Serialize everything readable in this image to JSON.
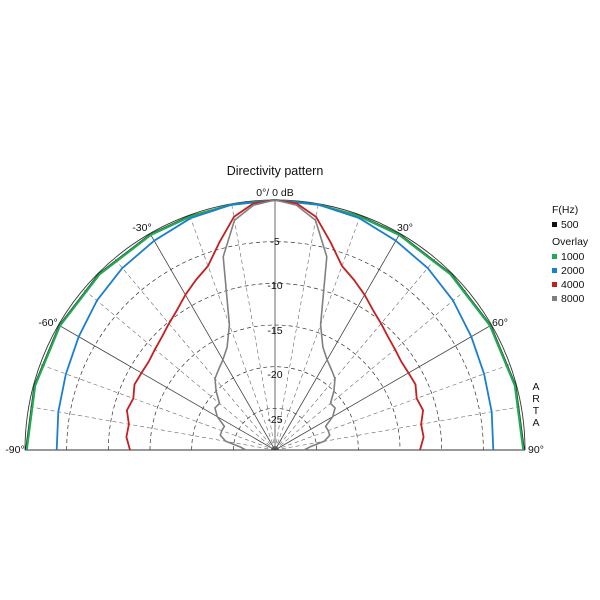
{
  "chart_data": {
    "type": "polar-line",
    "title": "Directivity pattern",
    "top_label": "0°/ 0 dB",
    "angle_range": [
      -90,
      90
    ],
    "radial_range_db": [
      -30,
      0
    ],
    "radial_ticks": [
      "-5",
      "-10",
      "-15",
      "-20",
      "-25"
    ],
    "angle_labels": {
      "neg90": "-90°",
      "neg60": "-60°",
      "neg30": "-30°",
      "pos30": "30°",
      "pos60": "60°",
      "pos90": "90°"
    },
    "grid": true,
    "legend": {
      "placement": "right",
      "header": "F(Hz)",
      "overlay_label": "Overlay",
      "items": [
        {
          "label": "500",
          "color": "#111111"
        },
        {
          "label": "1000",
          "color": "#22aa55"
        },
        {
          "label": "2000",
          "color": "#1a7fd0"
        },
        {
          "label": "4000",
          "color": "#c42020"
        },
        {
          "label": "8000",
          "color": "#808080"
        }
      ]
    },
    "watermark": "ARTA",
    "series": [
      {
        "name": "500",
        "color": "#111111",
        "angles": [
          -90,
          -75,
          -60,
          -45,
          -30,
          -20,
          -10,
          0,
          10,
          20,
          30,
          45,
          60,
          75,
          90
        ],
        "db": [
          -0.1,
          -0.1,
          -0.1,
          -0.1,
          -0.1,
          -0.1,
          -0.1,
          0,
          -0.1,
          -0.1,
          -0.1,
          -0.1,
          -0.1,
          -0.1,
          -0.1
        ]
      },
      {
        "name": "1000",
        "color": "#22aa55",
        "angles": [
          -90,
          -75,
          -60,
          -45,
          -30,
          -20,
          -10,
          0,
          10,
          20,
          30,
          45,
          60,
          75,
          90
        ],
        "db": [
          -0.2,
          -0.2,
          -0.2,
          -0.2,
          -0.2,
          -0.2,
          -0.1,
          0,
          -0.1,
          -0.2,
          -0.2,
          -0.2,
          -0.2,
          -0.2,
          -0.2
        ]
      },
      {
        "name": "2000",
        "color": "#1a7fd0",
        "angles": [
          -90,
          -80,
          -70,
          -60,
          -50,
          -40,
          -30,
          -20,
          -10,
          0,
          10,
          20,
          30,
          40,
          50,
          60,
          70,
          80,
          90
        ],
        "db": [
          -3.8,
          -3.6,
          -3.3,
          -2.8,
          -2.1,
          -1.5,
          -1.0,
          -0.4,
          -0.1,
          0,
          -0.1,
          -0.4,
          -1.0,
          -1.5,
          -2.1,
          -2.8,
          -3.3,
          -3.6,
          -3.8
        ]
      },
      {
        "name": "4000",
        "color": "#c42020",
        "angles": [
          -90,
          -85,
          -80,
          -75,
          -70,
          -65,
          -60,
          -55,
          -50,
          -45,
          -40,
          -35,
          -30,
          -25,
          -20,
          -15,
          -10,
          -5,
          0,
          5,
          10,
          15,
          20,
          25,
          30,
          35,
          40,
          45,
          50,
          55,
          60,
          65,
          70,
          75,
          80,
          85,
          90
        ],
        "db": [
          -12.6,
          -12.1,
          -12.2,
          -11.6,
          -11.9,
          -11.4,
          -11.5,
          -11.5,
          -11.2,
          -10.8,
          -10.2,
          -9.5,
          -8.5,
          -7.5,
          -6.5,
          -4.2,
          -1.6,
          -0.3,
          0,
          -0.3,
          -1.6,
          -4.2,
          -6.5,
          -7.5,
          -8.5,
          -9.5,
          -10.2,
          -10.8,
          -11.2,
          -11.5,
          -11.5,
          -11.4,
          -11.9,
          -11.6,
          -12.2,
          -12.1,
          -12.6
        ]
      },
      {
        "name": "8000",
        "color": "#808080",
        "angles": [
          -90,
          -85,
          -80,
          -75,
          -70,
          -65,
          -60,
          -55,
          -50,
          -45,
          -40,
          -35,
          -30,
          -25,
          -20,
          -15,
          -10,
          -5,
          0,
          5,
          10,
          15,
          20,
          25,
          30,
          35,
          40,
          45,
          50,
          55,
          60,
          65,
          70,
          75,
          80,
          85,
          90
        ],
        "db": [
          -26.5,
          -25.8,
          -24.0,
          -23.2,
          -23.2,
          -23.3,
          -22.0,
          -21.2,
          -21.3,
          -20.0,
          -18.8,
          -18.2,
          -17.5,
          -16.4,
          -14.0,
          -6.0,
          -2.0,
          -0.5,
          0,
          -0.5,
          -2.0,
          -6.0,
          -14.0,
          -16.4,
          -17.5,
          -18.2,
          -18.8,
          -20.0,
          -21.3,
          -21.2,
          -22.0,
          -23.3,
          -23.2,
          -23.2,
          -24.0,
          -25.8,
          -26.5
        ]
      }
    ]
  }
}
